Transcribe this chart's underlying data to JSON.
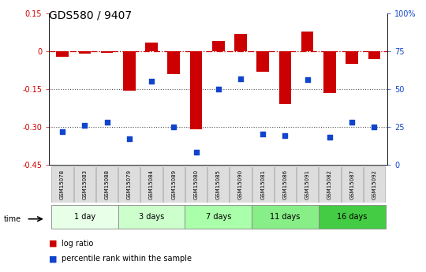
{
  "title": "GDS580 / 9407",
  "samples": [
    "GSM15078",
    "GSM15083",
    "GSM15088",
    "GSM15079",
    "GSM15084",
    "GSM15089",
    "GSM15080",
    "GSM15085",
    "GSM15090",
    "GSM15081",
    "GSM15086",
    "GSM15091",
    "GSM15082",
    "GSM15087",
    "GSM15092"
  ],
  "log_ratio": [
    -0.02,
    -0.01,
    -0.005,
    -0.155,
    0.035,
    -0.09,
    -0.31,
    0.04,
    0.07,
    -0.08,
    -0.21,
    0.08,
    -0.165,
    -0.05,
    -0.03
  ],
  "percentile_rank": [
    22,
    26,
    28,
    17,
    55,
    25,
    8,
    50,
    57,
    20,
    19,
    56,
    18,
    28,
    25
  ],
  "groups": [
    {
      "label": "1 day",
      "count": 3,
      "color": "#e8ffe8"
    },
    {
      "label": "3 days",
      "count": 3,
      "color": "#ccffcc"
    },
    {
      "label": "7 days",
      "count": 3,
      "color": "#aaffaa"
    },
    {
      "label": "11 days",
      "count": 3,
      "color": "#88ee88"
    },
    {
      "label": "16 days",
      "count": 3,
      "color": "#44cc44"
    }
  ],
  "ylim": [
    -0.45,
    0.15
  ],
  "right_ylim": [
    0,
    100
  ],
  "bar_color": "#cc0000",
  "dot_color": "#1144cc",
  "hline_color": "#cc0000",
  "dotted_line_color": "#555555",
  "title_fontsize": 10,
  "tick_fontsize": 7,
  "label_fontsize": 7
}
